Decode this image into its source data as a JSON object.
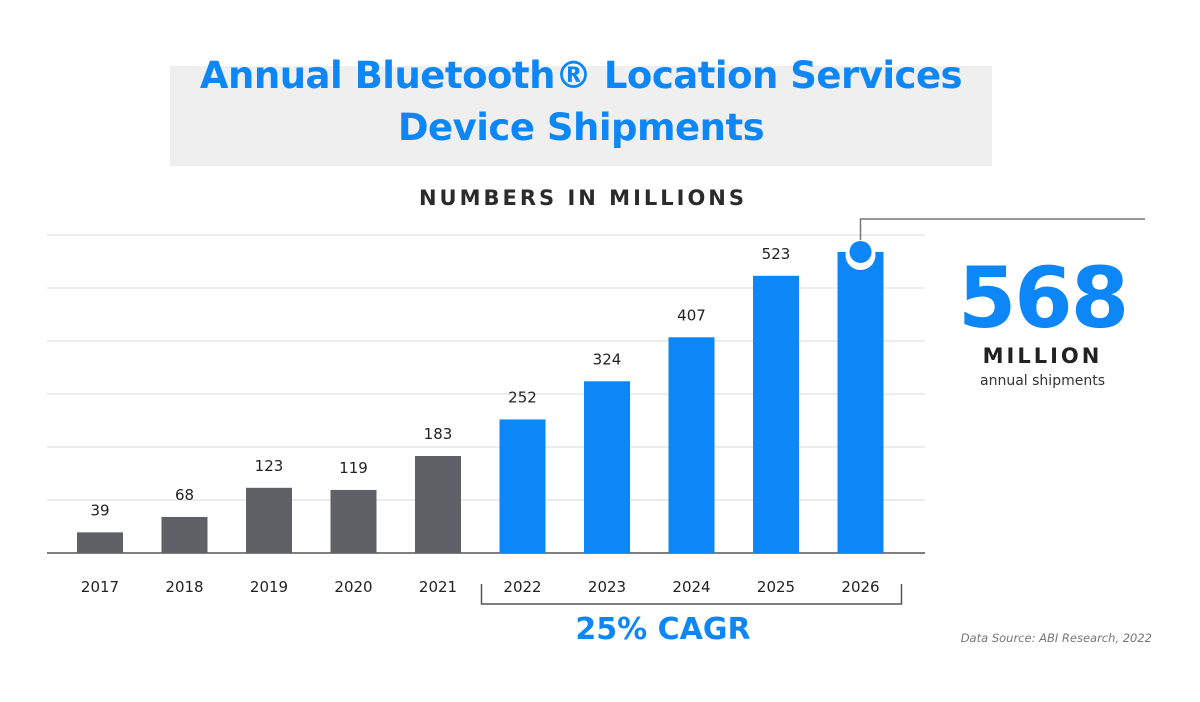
{
  "chart_data": {
    "type": "bar",
    "title": "Annual Bluetooth® Location Services Device Shipments",
    "subtitle": "NUMBERS IN MILLIONS",
    "categories": [
      "2017",
      "2018",
      "2019",
      "2020",
      "2021",
      "2022",
      "2023",
      "2024",
      "2025",
      "2026"
    ],
    "values": [
      39,
      68,
      123,
      119,
      183,
      252,
      324,
      407,
      523,
      568
    ],
    "bar_colors": [
      "#5f6166",
      "#5f6166",
      "#5f6166",
      "#5f6166",
      "#5f6166",
      "#0d87f7",
      "#0d87f7",
      "#0d87f7",
      "#0d87f7",
      "#0d87f7"
    ],
    "ylim": [
      0,
      600
    ],
    "grid": true,
    "grid_step": 100,
    "xlabel": "",
    "ylabel": ""
  },
  "title_line1": "Annual Bluetooth® Location Services",
  "title_line2": "Device Shipments",
  "callout": {
    "value": "568",
    "unit": "MILLION",
    "caption": "annual shipments"
  },
  "cagr_label": "25% CAGR",
  "source": "Data Source: ABI Research, 2022",
  "colors": {
    "accent": "#0d87f7",
    "historical": "#5f6166"
  }
}
